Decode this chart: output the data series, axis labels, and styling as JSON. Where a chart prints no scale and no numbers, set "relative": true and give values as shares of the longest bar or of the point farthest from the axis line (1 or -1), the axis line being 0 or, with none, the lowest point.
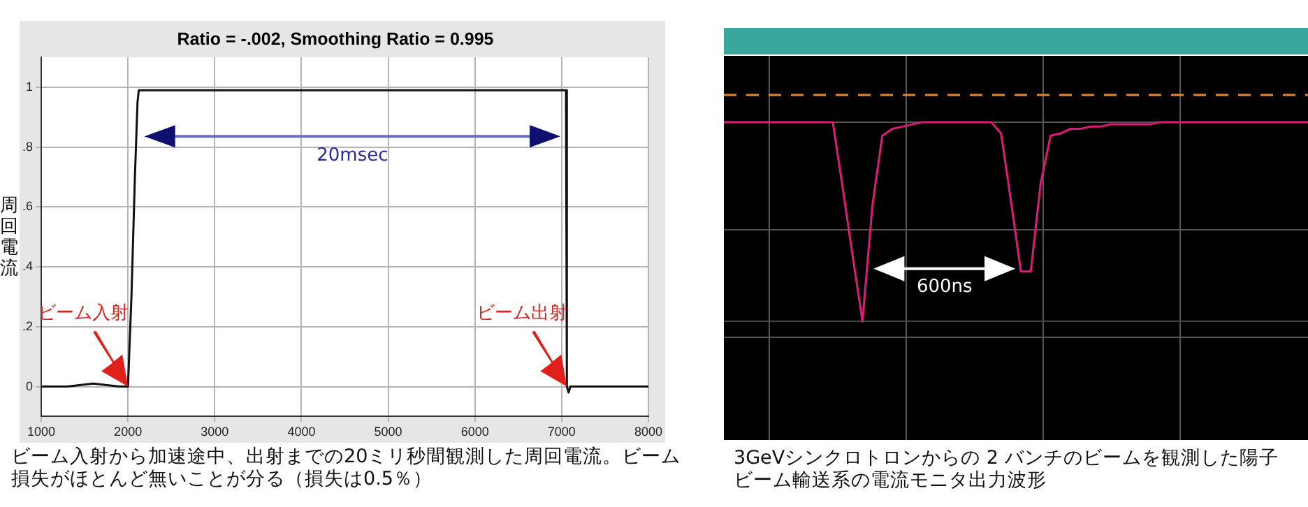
{
  "chart_data": [
    {
      "type": "line",
      "title": "Ratio = -.002, Smoothing Ratio = 0.995",
      "ylabel": "周回電流",
      "xlim": [
        1000,
        8000
      ],
      "ylim": [
        -0.1,
        1.1
      ],
      "xticks": [
        1000,
        2000,
        3000,
        4000,
        5000,
        6000,
        7000,
        8000
      ],
      "yticks": [
        0,
        {
          "value": 0.2,
          "label": ".2"
        },
        {
          "value": 0.4,
          "label": ".4"
        },
        {
          "value": 0.6,
          "label": ".6"
        },
        {
          "value": 0.8,
          "label": ".8"
        },
        1
      ],
      "grid": true,
      "series": [
        {
          "color": "#111111",
          "x": [
            1000,
            1300,
            1600,
            1900,
            2000,
            2040,
            2080,
            2110,
            2125,
            3000,
            4000,
            5000,
            6000,
            7000,
            7050,
            7060,
            7080,
            7100,
            7300,
            7600,
            8000
          ],
          "values": [
            0,
            0,
            0.01,
            0,
            0,
            0.3,
            0.7,
            0.95,
            0.99,
            0.99,
            0.99,
            0.99,
            0.99,
            0.99,
            0.99,
            0,
            -0.02,
            0,
            0,
            0,
            0
          ]
        }
      ],
      "annotations": [
        "20msec",
        "ビーム入射",
        "ビーム出射",
        "ビーム入射から加速途中、出射までの20ミリ秒間観測した周回電流。ビーム損失がほとんど無いことが分る（損失は0.5％）"
      ]
    },
    {
      "type": "line",
      "relative": true,
      "grid": true,
      "categories": [
        null,
        null,
        null,
        null,
        null,
        null,
        null,
        null,
        null,
        null,
        null,
        null,
        null,
        null,
        null,
        null,
        null,
        null,
        null,
        null,
        null,
        null,
        null,
        null,
        null,
        null,
        null,
        null,
        null,
        null,
        null,
        null,
        null,
        null,
        null,
        null,
        null,
        null,
        null,
        null,
        null,
        null,
        null,
        null,
        null,
        null,
        null,
        null,
        null,
        null,
        null,
        null,
        null,
        null,
        null,
        null,
        null,
        null,
        null,
        null
      ],
      "series": [
        {
          "color": "#e0197a",
          "values": [
            0.88,
            0.88,
            0.88,
            0.88,
            0.88,
            0.88,
            0.88,
            0.88,
            0.88,
            0.88,
            0.88,
            0.88,
            0.59,
            0.29,
            0,
            0.51,
            0.82,
            0.85,
            0.86,
            0.87,
            0.88,
            0.88,
            0.88,
            0.88,
            0.88,
            0.88,
            0.88,
            0.88,
            0.83,
            0.53,
            0.22,
            0.22,
            0.61,
            0.82,
            0.83,
            0.85,
            0.85,
            0.86,
            0.86,
            0.87,
            0.87,
            0.87,
            0.87,
            0.87,
            0.88,
            0.88,
            0.88,
            0.88,
            0.88,
            0.88,
            0.88,
            0.88,
            0.88,
            0.88,
            0.88,
            0.88,
            0.88,
            0.88,
            0.88,
            0.88
          ]
        },
        {
          "color": "#e08a2e",
          "line_style": "dashed",
          "values": [
            1,
            1,
            1,
            1,
            1,
            1,
            1,
            1,
            1,
            1,
            1,
            1,
            1,
            1,
            1,
            1,
            1,
            1,
            1,
            1,
            1,
            1,
            1,
            1,
            1,
            1,
            1,
            1,
            1,
            1,
            1,
            1,
            1,
            1,
            1,
            1,
            1,
            1,
            1,
            1,
            1,
            1,
            1,
            1,
            1,
            1,
            1,
            1,
            1,
            1,
            1,
            1,
            1,
            1,
            1,
            1,
            1,
            1,
            1,
            1
          ]
        }
      ],
      "annotations": [
        "600ns",
        "3GeVシンクロトロンからの 2 バンチのビームを観測した陽子ビーム輸送系の電流モニタ出力波形"
      ]
    }
  ]
}
